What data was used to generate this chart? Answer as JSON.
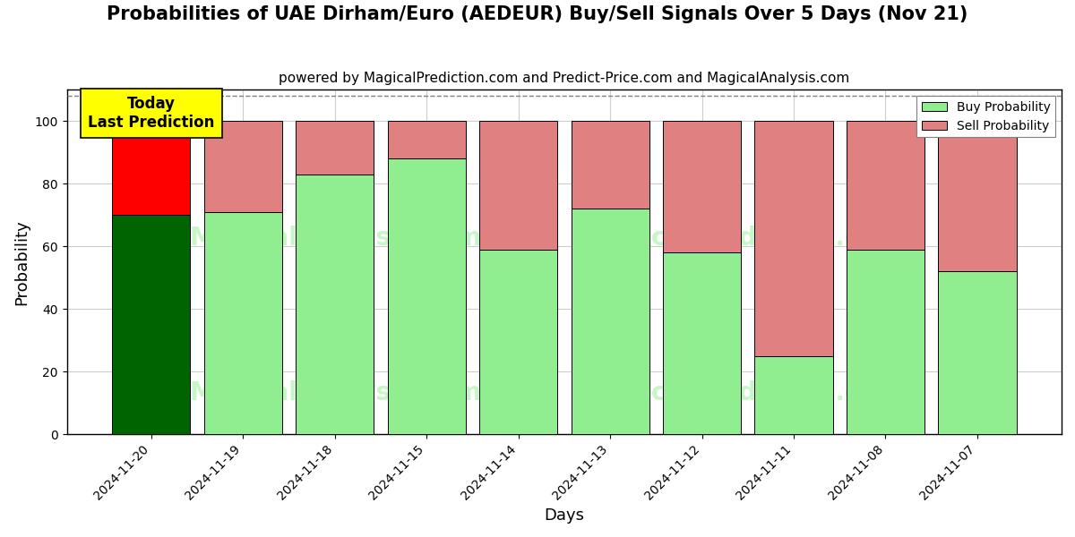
{
  "title": "Probabilities of UAE Dirham/Euro (AEDEUR) Buy/Sell Signals Over 5 Days (Nov 21)",
  "subtitle": "powered by MagicalPrediction.com and Predict-Price.com and MagicalAnalysis.com",
  "xlabel": "Days",
  "ylabel": "Probability",
  "dates": [
    "2024-11-20",
    "2024-11-19",
    "2024-11-18",
    "2024-11-15",
    "2024-11-14",
    "2024-11-13",
    "2024-11-12",
    "2024-11-11",
    "2024-11-08",
    "2024-11-07"
  ],
  "buy_values": [
    70,
    71,
    83,
    88,
    59,
    72,
    58,
    25,
    59,
    52
  ],
  "sell_values": [
    30,
    29,
    17,
    12,
    41,
    28,
    42,
    75,
    41,
    48
  ],
  "buy_color_today": "#006400",
  "sell_color_today": "#ff0000",
  "buy_color_rest": "#90ee90",
  "sell_color_rest": "#e08080",
  "bar_width": 0.85,
  "ylim": [
    0,
    110
  ],
  "yticks": [
    0,
    20,
    40,
    60,
    80,
    100
  ],
  "dashed_line_y": 108,
  "today_label_text": "Today\nLast Prediction",
  "today_label_bg": "#ffff00",
  "legend_buy_label": "Buy Probability",
  "legend_sell_label": "Sell Probability",
  "plot_bg_color": "#ffffff",
  "fig_bg_color": "#ffffff",
  "grid_color": "#cccccc",
  "title_fontsize": 15,
  "subtitle_fontsize": 11,
  "watermark_color": "#90ee90",
  "watermark_alpha": 0.5
}
